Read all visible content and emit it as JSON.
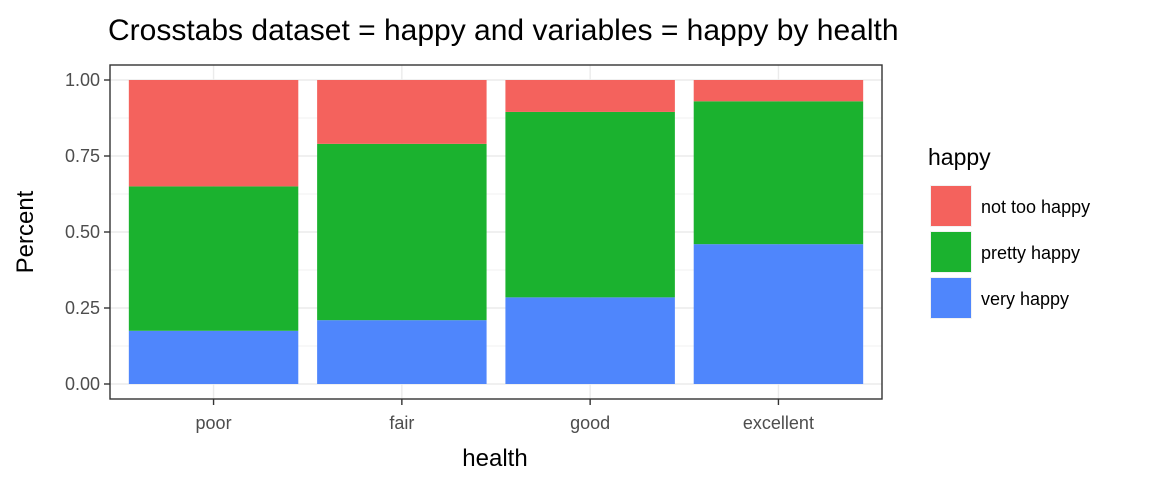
{
  "chart_data": {
    "type": "bar",
    "stacked": true,
    "title": "Crosstabs dataset = happy and variables = happy by health",
    "xlabel": "health",
    "ylabel": "Percent",
    "ylim": [
      0,
      1
    ],
    "yticks": [
      "0.00",
      "0.25",
      "0.50",
      "0.75",
      "1.00"
    ],
    "categories": [
      "poor",
      "fair",
      "good",
      "excellent"
    ],
    "series": [
      {
        "name": "very happy",
        "color": "#4f86fc",
        "values": [
          0.175,
          0.21,
          0.285,
          0.46
        ]
      },
      {
        "name": "pretty happy",
        "color": "#1bb22f",
        "values": [
          0.475,
          0.58,
          0.61,
          0.47
        ]
      },
      {
        "name": "not too happy",
        "color": "#f4625d",
        "values": [
          0.35,
          0.21,
          0.105,
          0.07
        ]
      }
    ],
    "legend": {
      "title": "happy",
      "position": "right",
      "order": [
        "not too happy",
        "pretty happy",
        "very happy"
      ]
    },
    "grid": true,
    "theme": "bw"
  }
}
